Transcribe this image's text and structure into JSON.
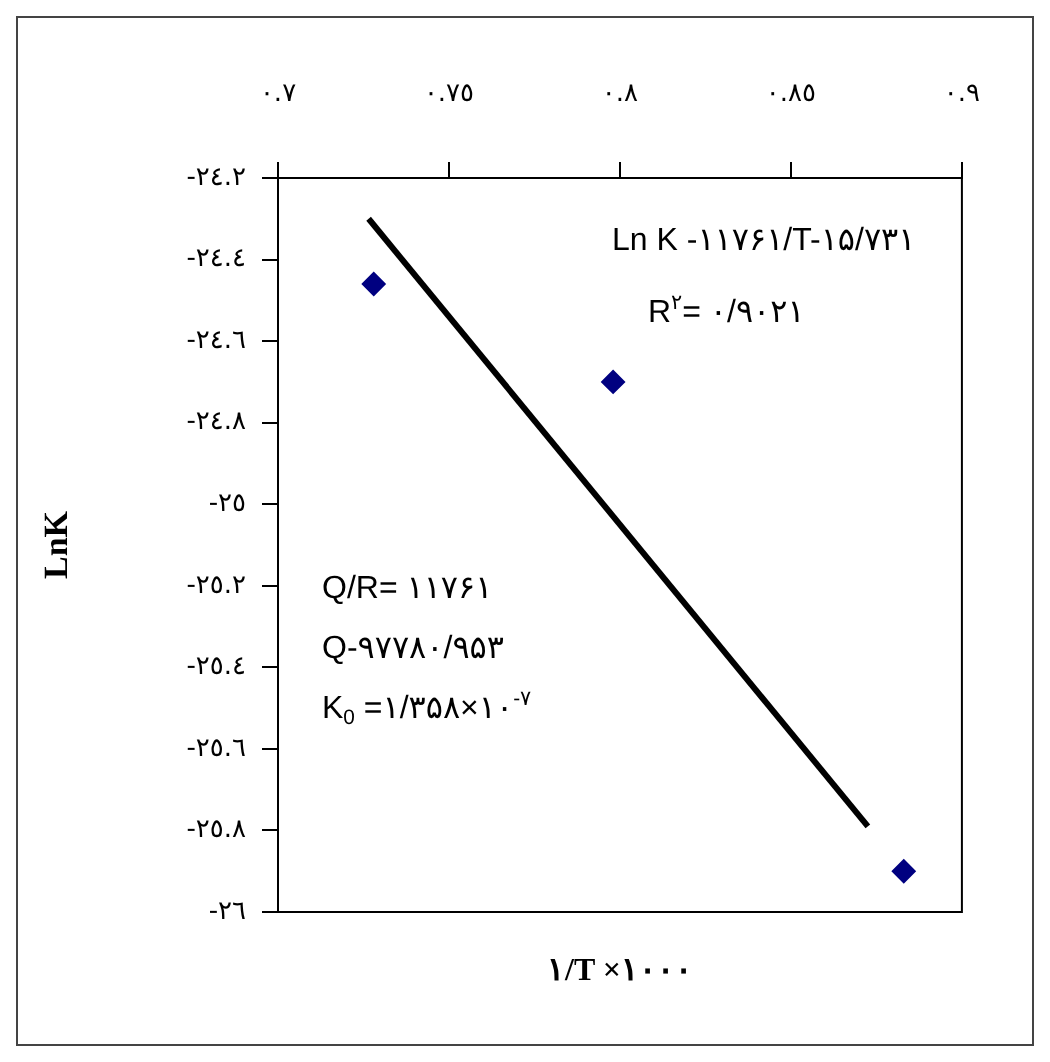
{
  "chart_data": {
    "type": "scatter",
    "xlabel": "۱/T ×۱۰۰۰",
    "ylabel": "LnK",
    "xlim": [
      0.7,
      0.9
    ],
    "xticks": [
      {
        "value": 0.7,
        "label": "٠.٧"
      },
      {
        "value": 0.75,
        "label": "٠.٧٥"
      },
      {
        "value": 0.8,
        "label": "٠.٨"
      },
      {
        "value": 0.85,
        "label": "٠.٨٥"
      },
      {
        "value": 0.9,
        "label": "٠.٩"
      }
    ],
    "ylim": [
      -26,
      -24.2
    ],
    "yticks": [
      {
        "value": -24.2,
        "label": "-٢٤.٢"
      },
      {
        "value": -24.4,
        "label": "-٢٤.٤"
      },
      {
        "value": -24.6,
        "label": "-٢٤.٦"
      },
      {
        "value": -24.8,
        "label": "-٢٤.٨"
      },
      {
        "value": -25,
        "label": "-٢٥"
      },
      {
        "value": -25.2,
        "label": "-٢٥.٢"
      },
      {
        "value": -25.4,
        "label": "-٢٥.٤"
      },
      {
        "value": -25.6,
        "label": "-٢٥.٦"
      },
      {
        "value": -25.8,
        "label": "-٢٥.٨"
      },
      {
        "value": -26,
        "label": "-٢٦"
      }
    ],
    "x": [
      0.728,
      0.798,
      0.883
    ],
    "series": [
      {
        "color": "#000080",
        "values": [
          -24.46,
          -24.7,
          -25.9
        ],
        "marker": "diamond"
      },
      {
        "type": "line",
        "color": "#000000",
        "x": [
          0.7265,
          0.8725
        ],
        "values": [
          -24.3,
          -25.79
        ],
        "marker": "none"
      }
    ],
    "annotations": [
      "Ln K -۱۱۷۶۱/T-۱۵/۷۳۱",
      "R$^{۲}$= ۰/۹۰۲۱",
      "Q/R= ۱۱۷۶۱",
      "Q-۹۷۷۸۰/۹۵۳",
      "K$_{0}$ =۱/۳۵۸×۱۰$^{-۷}$"
    ],
    "grid": false,
    "legend": false,
    "tick_labels": "xy"
  }
}
